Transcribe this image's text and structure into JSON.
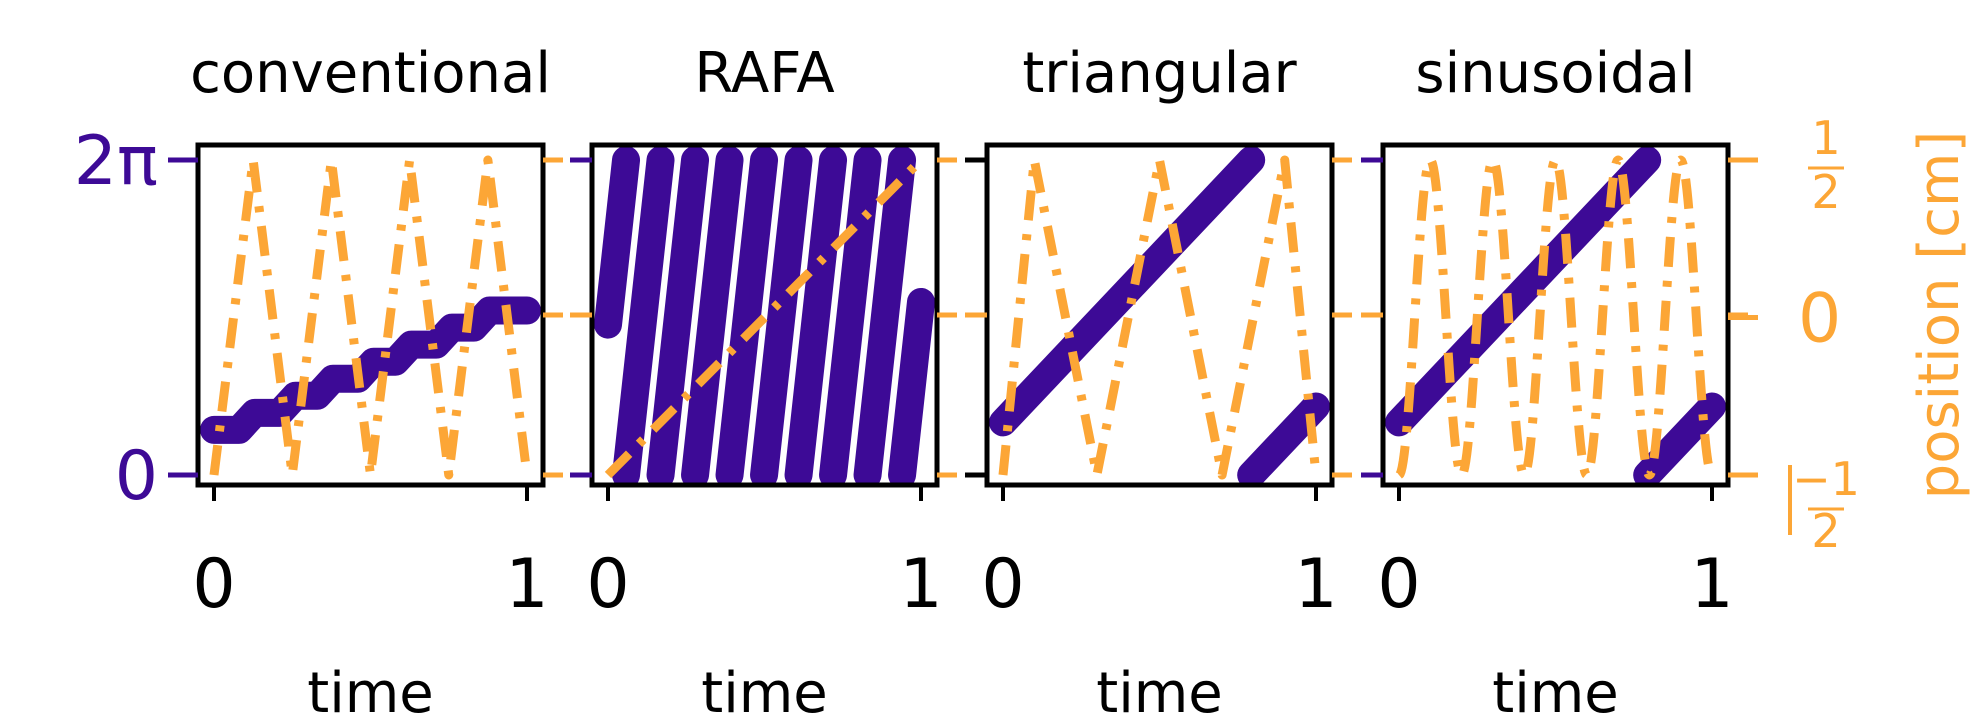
{
  "colors": {
    "phase": "#3d0a96",
    "position": "#fca636",
    "axes": "#000000"
  },
  "chart_data": [
    {
      "type": "line",
      "title": "conventional",
      "xlabel": "time",
      "xlim": [
        0,
        1
      ],
      "xticks": [
        "0",
        "1"
      ],
      "series": [
        {
          "axis": "left",
          "style": "thick-solid",
          "x": [
            0,
            0.08,
            0.13,
            0.21,
            0.26,
            0.33,
            0.38,
            0.46,
            0.51,
            0.58,
            0.63,
            0.71,
            0.76,
            0.83,
            0.88,
            1.0
          ],
          "y": [
            0.9,
            0.9,
            1.24,
            1.24,
            1.58,
            1.58,
            1.92,
            1.92,
            2.26,
            2.26,
            2.6,
            2.6,
            2.94,
            2.94,
            3.28,
            3.28
          ]
        },
        {
          "axis": "right",
          "style": "dash-dot",
          "x": [
            0,
            0.125,
            0.25,
            0.375,
            0.5,
            0.625,
            0.75,
            0.875,
            1.0
          ],
          "y": [
            -0.5,
            0.5,
            -0.5,
            0.5,
            -0.5,
            0.5,
            -0.5,
            0.5,
            -0.5
          ]
        }
      ]
    },
    {
      "type": "line",
      "title": "RAFA",
      "xlabel": "time",
      "xlim": [
        0,
        1
      ],
      "xticks": [
        "0",
        "1"
      ],
      "series": [
        {
          "axis": "left",
          "style": "thick-sawtooth",
          "start": 3.0,
          "slope": 57.0
        },
        {
          "axis": "right",
          "style": "dash-dot",
          "x": [
            0,
            1
          ],
          "y": [
            -0.5,
            0.5
          ]
        }
      ]
    },
    {
      "type": "line",
      "title": "triangular",
      "xlabel": "time",
      "xlim": [
        0,
        1
      ],
      "xticks": [
        "0",
        "1"
      ],
      "series": [
        {
          "axis": "left",
          "style": "thick-sawtooth",
          "start": 1.05,
          "slope": 6.6
        },
        {
          "axis": "right",
          "style": "dash-dot",
          "x": [
            0,
            0.1,
            0.3,
            0.5,
            0.7,
            0.9,
            1.0
          ],
          "y": [
            -0.5,
            0.5,
            -0.5,
            0.5,
            -0.5,
            0.5,
            -0.5
          ]
        }
      ]
    },
    {
      "type": "line",
      "title": "sinusoidal",
      "xlabel": "time",
      "xlim": [
        0,
        1
      ],
      "xticks": [
        "0",
        "1"
      ],
      "series": [
        {
          "axis": "left",
          "style": "thick-sawtooth",
          "start": 1.05,
          "slope": 6.6
        },
        {
          "axis": "right",
          "style": "dash-dot",
          "func": "sine",
          "cycles": 5,
          "amplitude": 0.5
        }
      ]
    }
  ],
  "left_axis": {
    "ylim": [
      0,
      6.2832
    ],
    "ticks": [
      {
        "value": 0,
        "label": "0"
      },
      {
        "value": 6.2832,
        "label": "2π"
      }
    ]
  },
  "right_axis": {
    "label": "position [cm]",
    "ylim": [
      -0.5,
      0.5
    ],
    "ticks": [
      {
        "value": 0.5,
        "num": "1",
        "den": "2",
        "sign": ""
      },
      {
        "value": 0,
        "label": "0"
      },
      {
        "value": -0.5,
        "num": "−1",
        "den": "2",
        "sign": "bar"
      }
    ]
  }
}
